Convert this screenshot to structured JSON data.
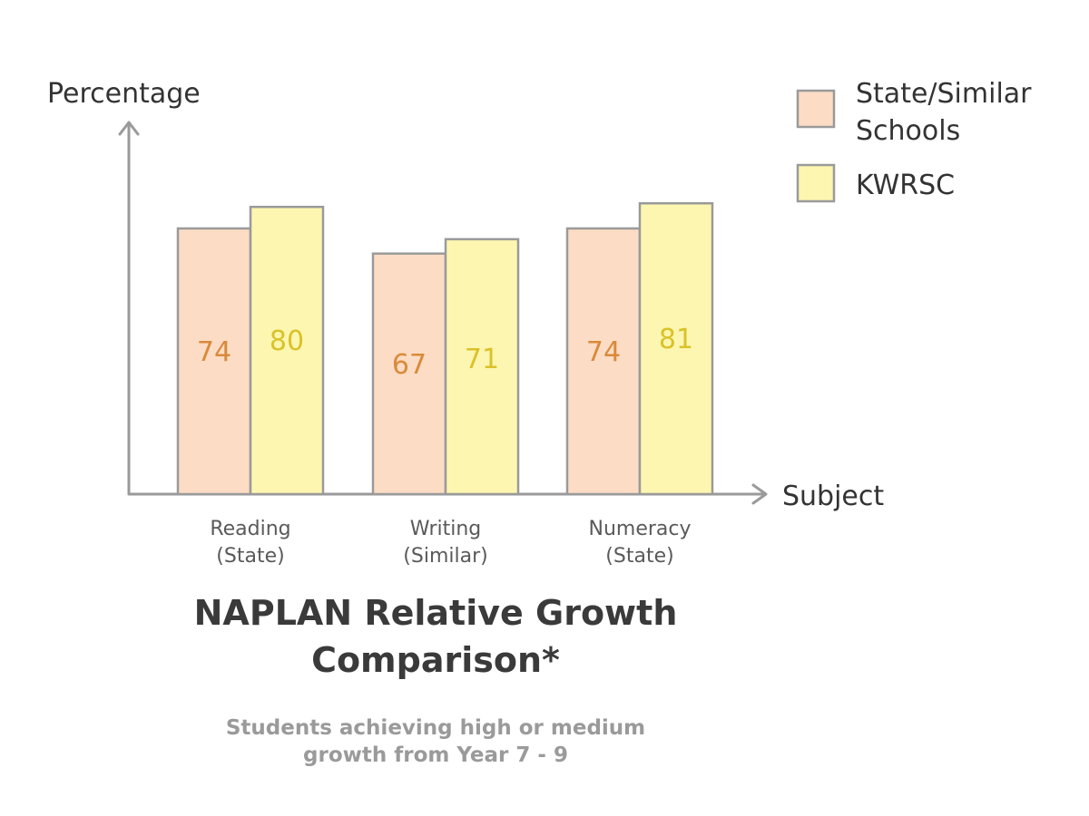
{
  "chart_data": {
    "type": "bar",
    "categories": [
      [
        "Reading",
        "(State)"
      ],
      [
        "Writing",
        "(Similar)"
      ],
      [
        "Numeracy",
        "(State)"
      ]
    ],
    "series": [
      {
        "name": "State/Similar Schools",
        "values": [
          74,
          67,
          74
        ],
        "color": "#fcdcc4",
        "label_color": "#d98a3a"
      },
      {
        "name": "KWRSC",
        "values": [
          80,
          71,
          81
        ],
        "color": "#fdf6b0",
        "label_color": "#d9c22a"
      }
    ],
    "ylabel": "Percentage",
    "xlabel": "Subject",
    "legend_lines": [
      [
        "State/Similar",
        "Schools"
      ],
      [
        "KWRSC"
      ]
    ],
    "legend_position": "top-right",
    "grid": false,
    "axis_color": "#9a9a9a"
  },
  "title": "NAPLAN Relative Growth Comparison*",
  "subtitle": "Students achieving high or medium growth from Year 7 - 9"
}
